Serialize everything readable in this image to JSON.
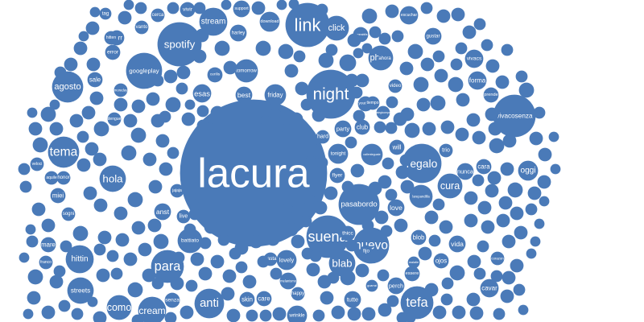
{
  "colors": {
    "bubble": "#4a7ab8",
    "background": "#ffffff",
    "text": "#ffffff"
  },
  "chart_data": {
    "type": "bubble",
    "words": [
      "lacura",
      "night",
      "link",
      "spotify",
      "suena",
      "nuevo",
      "para",
      "anti",
      "tefa",
      "cream",
      "agosto",
      "tema",
      "hittin",
      "streets",
      "como",
      "regalo",
      "pasabordo",
      "click",
      "googleplay",
      "stream",
      "photo",
      "cura",
      "vivacosenza",
      "hola",
      "battiato",
      "blab",
      "tomorrow",
      "friday",
      "best",
      "esas",
      "download",
      "support",
      "skin",
      "care",
      "wrinkle",
      "tutte",
      "perch",
      "essere",
      "vida",
      "blob",
      "love",
      "flyer",
      "tonight",
      "party",
      "club",
      "callenteguate",
      "will",
      "hard",
      "youtube",
      "video",
      "forma",
      "vivacs",
      "prende",
      "oggi",
      "nunca",
      "cara",
      "larepandilla",
      "trio",
      "ahora",
      "gustar",
      "escuchar",
      "vivir",
      "borr",
      "sale",
      "error",
      "hitten",
      "mare",
      "franco",
      "senza",
      "jajaja",
      "live",
      "anst",
      "sogni",
      "miei",
      "aquile",
      "veloci",
      "honor",
      "vanto",
      "harley",
      "powerabilis",
      "tag",
      "cerca",
      "cerilis",
      "grazie",
      "thicc",
      "fijo",
      "hasta",
      "melanismo",
      "happy",
      "guarrai",
      "malatie",
      "ojos",
      "corazon",
      "cavar",
      "moreday",
      "dengue",
      "lovely",
      "tiempo",
      "strategicompany",
      "damn",
      "talking"
    ]
  }
}
